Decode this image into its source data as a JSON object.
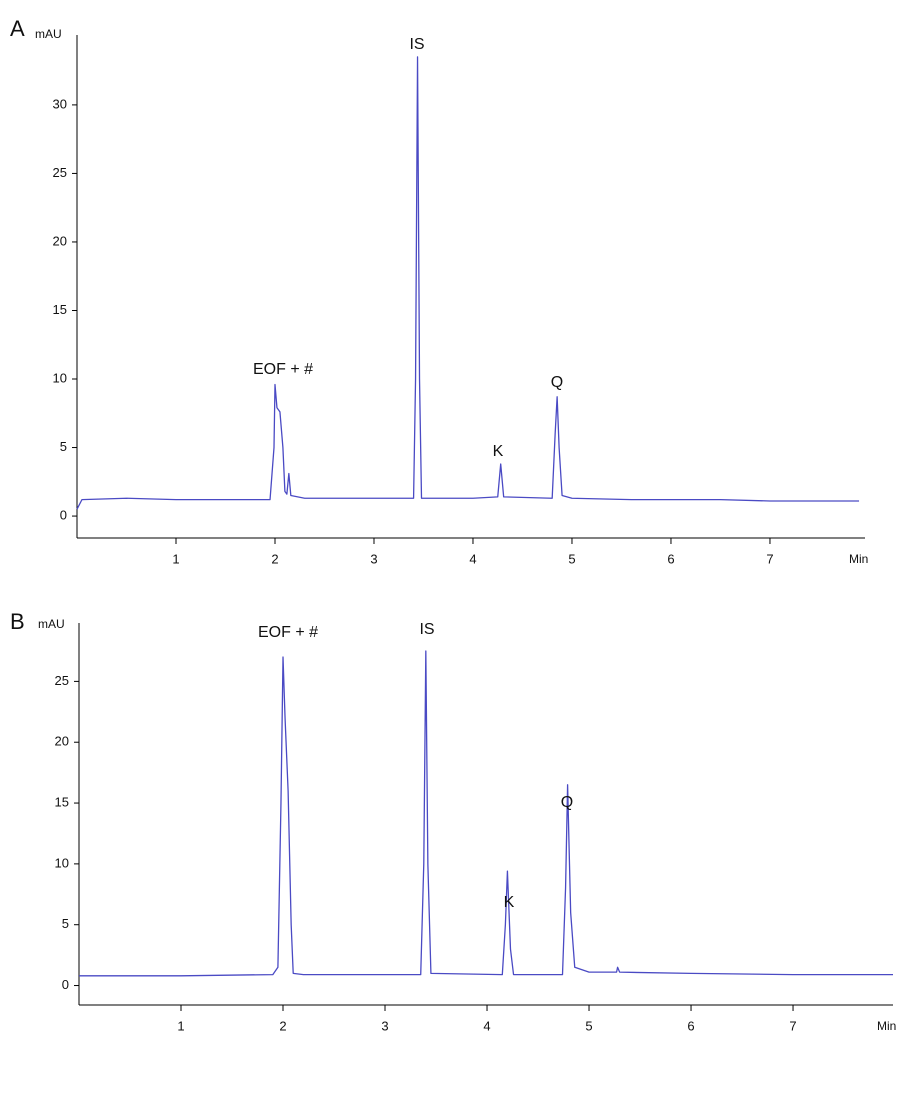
{
  "chart_data": [
    {
      "type": "line",
      "panel_label": "A",
      "y_label": "mAU",
      "x_label": "Min",
      "annotations": [
        "EOF + #",
        "IS",
        "K",
        "Q"
      ],
      "color": "#4a4ac4",
      "x": [
        0,
        0.05,
        0.5,
        1.0,
        1.5,
        1.95,
        1.99,
        2.0,
        2.02,
        2.05,
        2.08,
        2.1,
        2.12,
        2.14,
        2.16,
        2.3,
        2.8,
        3.4,
        3.42,
        3.44,
        3.46,
        3.48,
        4.0,
        4.25,
        4.28,
        4.31,
        4.8,
        4.83,
        4.85,
        4.87,
        4.9,
        5.0,
        5.6,
        6.5,
        7.0,
        7.9
      ],
      "values": [
        0.5,
        1.2,
        1.3,
        1.2,
        1.2,
        1.2,
        5,
        9.6,
        7.9,
        7.6,
        5,
        1.8,
        1.6,
        3.1,
        1.5,
        1.3,
        1.3,
        1.3,
        10,
        33.5,
        10,
        1.3,
        1.3,
        1.4,
        3.8,
        1.4,
        1.3,
        6,
        8.7,
        5,
        1.5,
        1.3,
        1.2,
        1.2,
        1.1,
        1.1
      ],
      "xlim": [
        0,
        7.96
      ],
      "ylim": [
        -1.6,
        35.1
      ],
      "xticks": [
        1,
        2,
        3,
        4,
        5,
        6,
        7
      ],
      "yticks": [
        0,
        5,
        10,
        15,
        20,
        25,
        30
      ]
    },
    {
      "type": "line",
      "panel_label": "B",
      "y_label": "mAU",
      "x_label": "Min",
      "annotations": [
        "EOF + #",
        "IS",
        "K",
        "Q"
      ],
      "color": "#4a4ac4",
      "x": [
        0,
        1.0,
        1.9,
        1.95,
        1.98,
        2.0,
        2.02,
        2.05,
        2.08,
        2.1,
        2.2,
        3.35,
        3.38,
        3.4,
        3.42,
        3.45,
        4.15,
        4.18,
        4.2,
        4.23,
        4.26,
        4.74,
        4.77,
        4.79,
        4.82,
        4.86,
        5.0,
        5.27,
        5.28,
        5.3,
        6.0,
        7.0,
        7.98
      ],
      "values": [
        0.8,
        0.8,
        0.9,
        1.5,
        15,
        27,
        22,
        16,
        5,
        1,
        0.9,
        0.9,
        10,
        27.5,
        10,
        1,
        0.9,
        5,
        9.4,
        3,
        0.9,
        0.9,
        8,
        16.5,
        6,
        1.5,
        1.1,
        1.1,
        1.5,
        1.1,
        1.0,
        0.9,
        0.9
      ],
      "xlim": [
        0,
        7.98
      ],
      "ylim": [
        -1.6,
        29.8
      ],
      "xticks": [
        1,
        2,
        3,
        4,
        5,
        6,
        7
      ],
      "yticks": [
        0,
        5,
        10,
        15,
        20,
        25
      ]
    }
  ]
}
